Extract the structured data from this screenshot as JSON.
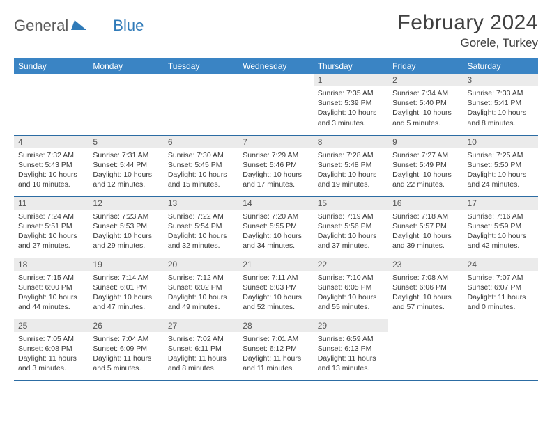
{
  "logo": {
    "general": "General",
    "blue": "Blue"
  },
  "title": "February 2024",
  "location": "Gorele, Turkey",
  "colors": {
    "header_bar": "#3a84c4",
    "row_divider": "#2c6ca3",
    "daynum_bg": "#ebebeb",
    "text": "#3a3a3a",
    "title_text": "#404040",
    "logo_gray": "#5a5a5a",
    "logo_blue": "#2f7ab8"
  },
  "dow": [
    "Sunday",
    "Monday",
    "Tuesday",
    "Wednesday",
    "Thursday",
    "Friday",
    "Saturday"
  ],
  "weeks": [
    [
      null,
      null,
      null,
      null,
      {
        "n": "1",
        "sr": "7:35 AM",
        "ss": "5:39 PM",
        "dl": "10 hours and 3 minutes."
      },
      {
        "n": "2",
        "sr": "7:34 AM",
        "ss": "5:40 PM",
        "dl": "10 hours and 5 minutes."
      },
      {
        "n": "3",
        "sr": "7:33 AM",
        "ss": "5:41 PM",
        "dl": "10 hours and 8 minutes."
      }
    ],
    [
      {
        "n": "4",
        "sr": "7:32 AM",
        "ss": "5:43 PM",
        "dl": "10 hours and 10 minutes."
      },
      {
        "n": "5",
        "sr": "7:31 AM",
        "ss": "5:44 PM",
        "dl": "10 hours and 12 minutes."
      },
      {
        "n": "6",
        "sr": "7:30 AM",
        "ss": "5:45 PM",
        "dl": "10 hours and 15 minutes."
      },
      {
        "n": "7",
        "sr": "7:29 AM",
        "ss": "5:46 PM",
        "dl": "10 hours and 17 minutes."
      },
      {
        "n": "8",
        "sr": "7:28 AM",
        "ss": "5:48 PM",
        "dl": "10 hours and 19 minutes."
      },
      {
        "n": "9",
        "sr": "7:27 AM",
        "ss": "5:49 PM",
        "dl": "10 hours and 22 minutes."
      },
      {
        "n": "10",
        "sr": "7:25 AM",
        "ss": "5:50 PM",
        "dl": "10 hours and 24 minutes."
      }
    ],
    [
      {
        "n": "11",
        "sr": "7:24 AM",
        "ss": "5:51 PM",
        "dl": "10 hours and 27 minutes."
      },
      {
        "n": "12",
        "sr": "7:23 AM",
        "ss": "5:53 PM",
        "dl": "10 hours and 29 minutes."
      },
      {
        "n": "13",
        "sr": "7:22 AM",
        "ss": "5:54 PM",
        "dl": "10 hours and 32 minutes."
      },
      {
        "n": "14",
        "sr": "7:20 AM",
        "ss": "5:55 PM",
        "dl": "10 hours and 34 minutes."
      },
      {
        "n": "15",
        "sr": "7:19 AM",
        "ss": "5:56 PM",
        "dl": "10 hours and 37 minutes."
      },
      {
        "n": "16",
        "sr": "7:18 AM",
        "ss": "5:57 PM",
        "dl": "10 hours and 39 minutes."
      },
      {
        "n": "17",
        "sr": "7:16 AM",
        "ss": "5:59 PM",
        "dl": "10 hours and 42 minutes."
      }
    ],
    [
      {
        "n": "18",
        "sr": "7:15 AM",
        "ss": "6:00 PM",
        "dl": "10 hours and 44 minutes."
      },
      {
        "n": "19",
        "sr": "7:14 AM",
        "ss": "6:01 PM",
        "dl": "10 hours and 47 minutes."
      },
      {
        "n": "20",
        "sr": "7:12 AM",
        "ss": "6:02 PM",
        "dl": "10 hours and 49 minutes."
      },
      {
        "n": "21",
        "sr": "7:11 AM",
        "ss": "6:03 PM",
        "dl": "10 hours and 52 minutes."
      },
      {
        "n": "22",
        "sr": "7:10 AM",
        "ss": "6:05 PM",
        "dl": "10 hours and 55 minutes."
      },
      {
        "n": "23",
        "sr": "7:08 AM",
        "ss": "6:06 PM",
        "dl": "10 hours and 57 minutes."
      },
      {
        "n": "24",
        "sr": "7:07 AM",
        "ss": "6:07 PM",
        "dl": "11 hours and 0 minutes."
      }
    ],
    [
      {
        "n": "25",
        "sr": "7:05 AM",
        "ss": "6:08 PM",
        "dl": "11 hours and 3 minutes."
      },
      {
        "n": "26",
        "sr": "7:04 AM",
        "ss": "6:09 PM",
        "dl": "11 hours and 5 minutes."
      },
      {
        "n": "27",
        "sr": "7:02 AM",
        "ss": "6:11 PM",
        "dl": "11 hours and 8 minutes."
      },
      {
        "n": "28",
        "sr": "7:01 AM",
        "ss": "6:12 PM",
        "dl": "11 hours and 11 minutes."
      },
      {
        "n": "29",
        "sr": "6:59 AM",
        "ss": "6:13 PM",
        "dl": "11 hours and 13 minutes."
      },
      null,
      null
    ]
  ],
  "labels": {
    "sunrise": "Sunrise:",
    "sunset": "Sunset:",
    "daylight": "Daylight:"
  }
}
